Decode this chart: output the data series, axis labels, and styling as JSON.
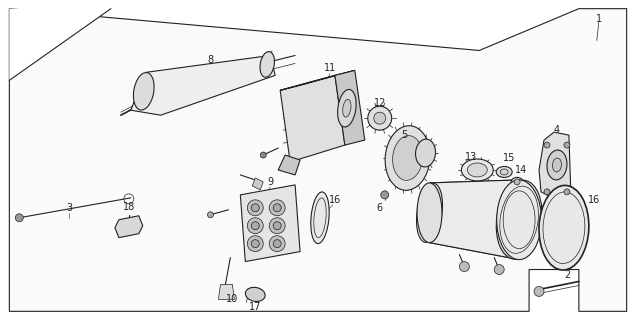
{
  "bg_color": "#ffffff",
  "line_color": "#222222",
  "border_color": "#444444",
  "fig_width": 6.36,
  "fig_height": 3.2,
  "dpi": 100
}
